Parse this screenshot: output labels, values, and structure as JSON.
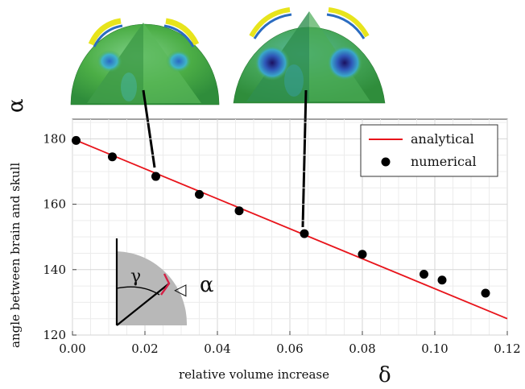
{
  "chart_data": {
    "type": "scatter",
    "xlabel": "relative volume increase",
    "xlabel_symbol": "δ",
    "ylabel": "angle between brain and skull",
    "ylabel_symbol": "α",
    "xlim": [
      0,
      0.12
    ],
    "ylim": [
      120,
      186
    ],
    "x_ticks": [
      "0.00",
      "0.02",
      "0.04",
      "0.06",
      "0.08",
      "0.10",
      "0.12"
    ],
    "x_tick_values": [
      0,
      0.02,
      0.04,
      0.06,
      0.08,
      0.1,
      0.12
    ],
    "y_ticks": [
      "120",
      "140",
      "160",
      "180"
    ],
    "y_tick_values": [
      120,
      140,
      160,
      180
    ],
    "grid": true,
    "legend_position": "top-right",
    "series": [
      {
        "name": "analytical",
        "kind": "line",
        "color": "#e8141b",
        "x": [
          0.0,
          0.12
        ],
        "y": [
          180.0,
          125.0
        ]
      },
      {
        "name": "numerical",
        "kind": "scatter",
        "color": "#000000",
        "x": [
          0.001,
          0.011,
          0.023,
          0.035,
          0.046,
          0.064,
          0.08,
          0.097,
          0.102,
          0.114
        ],
        "y": [
          179.5,
          174.5,
          168.5,
          163.0,
          158.0,
          151.0,
          144.7,
          138.6,
          136.8,
          132.8
        ]
      }
    ],
    "annotations": {
      "inset_gamma": "γ",
      "inset_alpha": "α",
      "inset_angle_symbol": "◁"
    }
  }
}
